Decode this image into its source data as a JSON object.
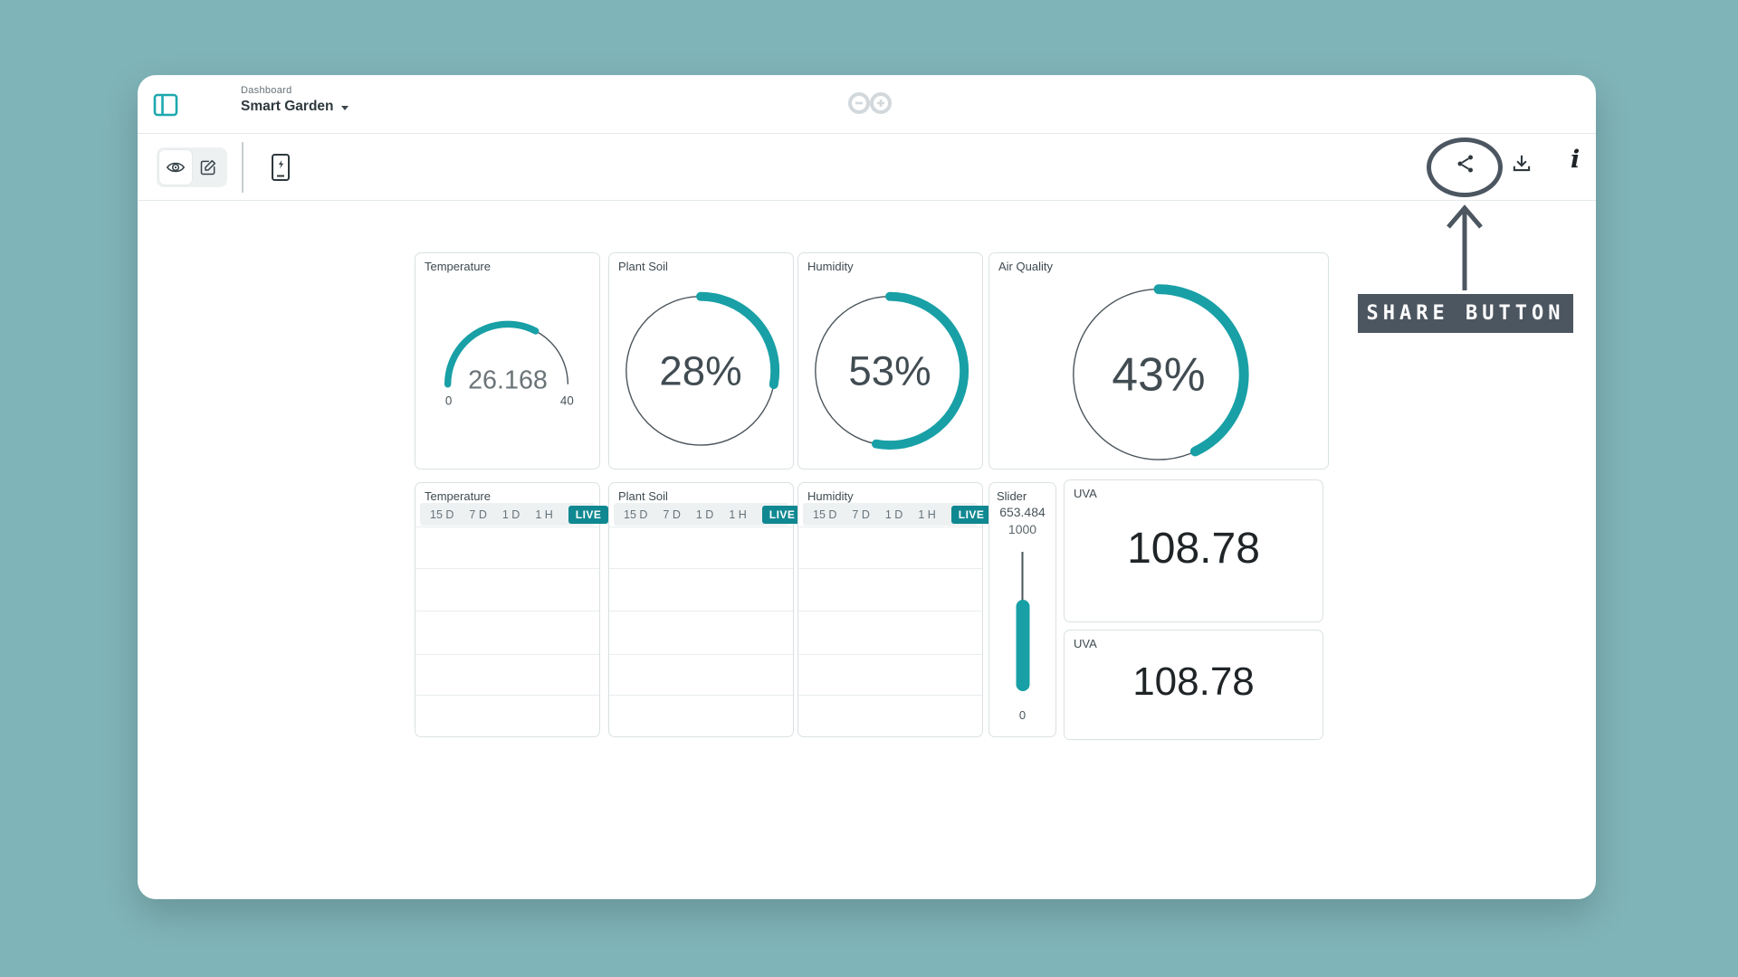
{
  "colors": {
    "accent": "#18A0A6",
    "page_bg": "#7FB4B8",
    "annotation": "#4C5661",
    "live_badge": "#108891"
  },
  "header": {
    "breadcrumb": "Dashboard",
    "title": "Smart Garden"
  },
  "annotation": {
    "label": "SHARE BUTTON"
  },
  "dashboard": {
    "gauges": [
      {
        "title": "Temperature",
        "value": "26.168",
        "min": "0",
        "max": "40",
        "percent": 65.4
      },
      {
        "title": "Plant Soil",
        "value": "28%",
        "percent": 28
      },
      {
        "title": "Humidity",
        "value": "53%",
        "percent": 53
      },
      {
        "title": "Air Quality",
        "value": "43%",
        "percent": 43
      }
    ],
    "charts": [
      {
        "title": "Temperature",
        "ranges": [
          "15 D",
          "7 D",
          "1 D",
          "1 H"
        ],
        "live_label": "LIVE"
      },
      {
        "title": "Plant Soil",
        "ranges": [
          "15 D",
          "7 D",
          "1 D",
          "1 H"
        ],
        "live_label": "LIVE"
      },
      {
        "title": "Humidity",
        "ranges": [
          "15 D",
          "7 D",
          "1 D",
          "1 H"
        ],
        "live_label": "LIVE"
      }
    ],
    "slider": {
      "title": "Slider",
      "value": "653.484",
      "max": "1000",
      "min": "0",
      "percent": 65.3
    },
    "value_widgets": [
      {
        "title": "UVA",
        "value": "108.78"
      },
      {
        "title": "UVA",
        "value": "108.78"
      }
    ]
  }
}
